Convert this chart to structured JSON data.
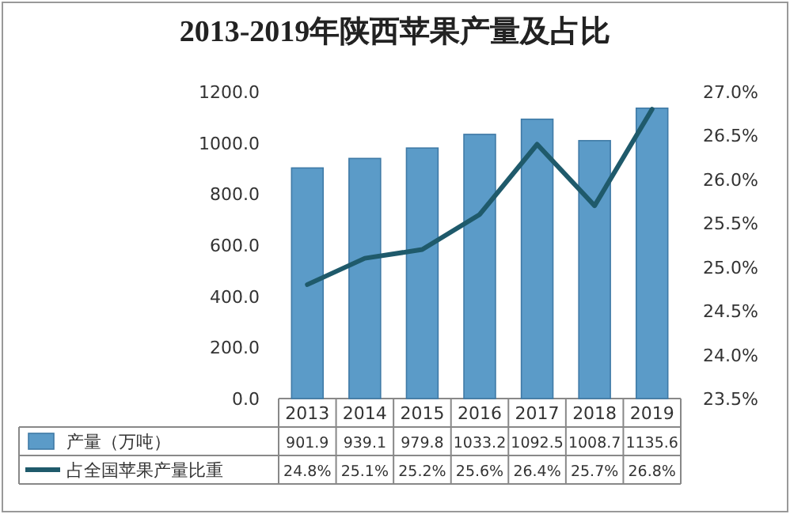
{
  "chart_data": {
    "type": "bar",
    "title": "2013-2019年陕西苹果产量及占比",
    "categories": [
      "2013",
      "2014",
      "2015",
      "2016",
      "2017",
      "2018",
      "2019"
    ],
    "series": [
      {
        "name": "产量（万吨）",
        "color": "#5b9bc8",
        "values": [
          901.9,
          939.1,
          979.8,
          1033.2,
          1092.5,
          1008.7,
          1135.6
        ],
        "value_labels": [
          "901.9",
          "939.1",
          "979.8",
          "1033.2",
          "1092.5",
          "1008.7",
          "1135.6"
        ]
      },
      {
        "name": "占全国苹果产量比重",
        "type": "line",
        "axis": "y2",
        "color": "#1f5a6b",
        "values": [
          24.8,
          25.1,
          25.2,
          25.6,
          26.4,
          25.7,
          26.8
        ],
        "value_labels": [
          "24.8%",
          "25.1%",
          "25.2%",
          "25.6%",
          "26.4%",
          "25.7%",
          "26.8%"
        ]
      }
    ],
    "ylim": [
      0,
      1200
    ],
    "yticks": [
      {
        "value": 0,
        "label": "0.0"
      },
      {
        "value": 200,
        "label": "200.0"
      },
      {
        "value": 400,
        "label": "400.0"
      },
      {
        "value": 600,
        "label": "600.0"
      },
      {
        "value": 800,
        "label": "800.0"
      },
      {
        "value": 1000,
        "label": "1000.0"
      },
      {
        "value": 1200,
        "label": "1200.0"
      }
    ],
    "y2lim": [
      23.5,
      27.0
    ],
    "y2ticks": [
      {
        "value": 23.5,
        "label": "23.5%"
      },
      {
        "value": 24.0,
        "label": "24.0%"
      },
      {
        "value": 24.5,
        "label": "24.5%"
      },
      {
        "value": 25.0,
        "label": "25.0%"
      },
      {
        "value": 25.5,
        "label": "25.5%"
      },
      {
        "value": 26.0,
        "label": "26.0%"
      },
      {
        "value": 26.5,
        "label": "26.5%"
      },
      {
        "value": 27.0,
        "label": "27.0%"
      }
    ],
    "legend": "bottom",
    "grid": false
  }
}
